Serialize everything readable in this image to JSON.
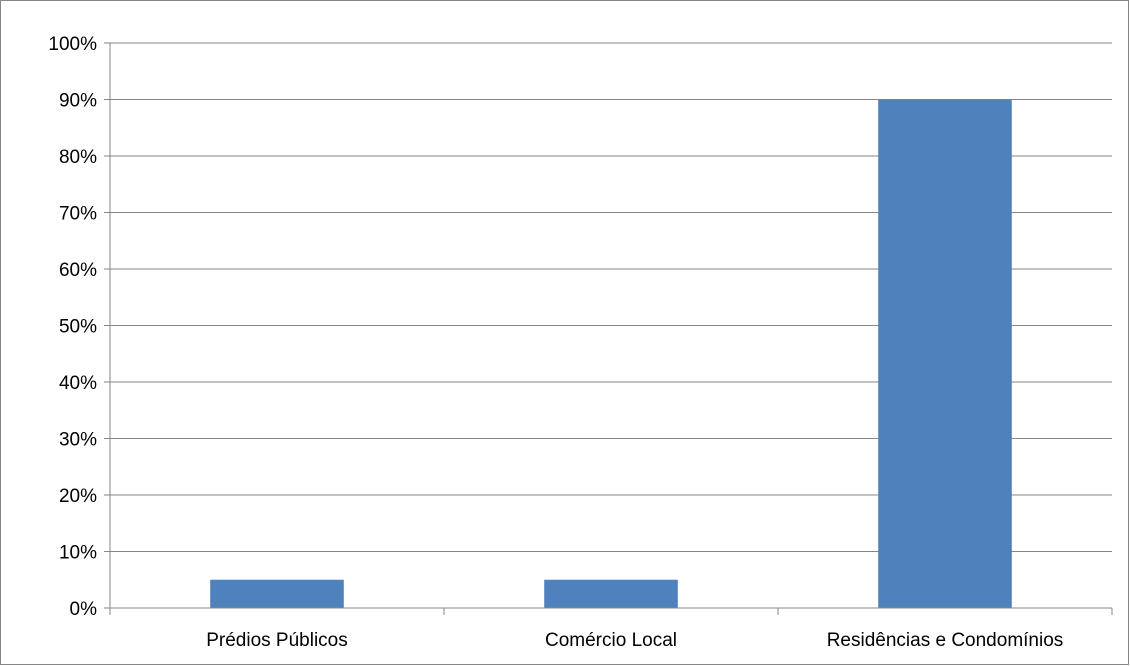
{
  "chart_data": {
    "type": "bar",
    "categories": [
      "Prédios Públicos",
      "Comércio Local",
      "Residências e Condomínios"
    ],
    "values": [
      5,
      5,
      90
    ],
    "ylim": [
      0,
      100
    ],
    "ytick_step": 10,
    "ytick_labels": [
      "0%",
      "10%",
      "20%",
      "30%",
      "40%",
      "50%",
      "60%",
      "70%",
      "80%",
      "90%",
      "100%"
    ],
    "grid": true,
    "legend": "none",
    "title": "",
    "xlabel": "",
    "ylabel": "",
    "colors": {
      "bar": "#4f81bd",
      "grid": "#868686",
      "axis": "#868686"
    }
  }
}
